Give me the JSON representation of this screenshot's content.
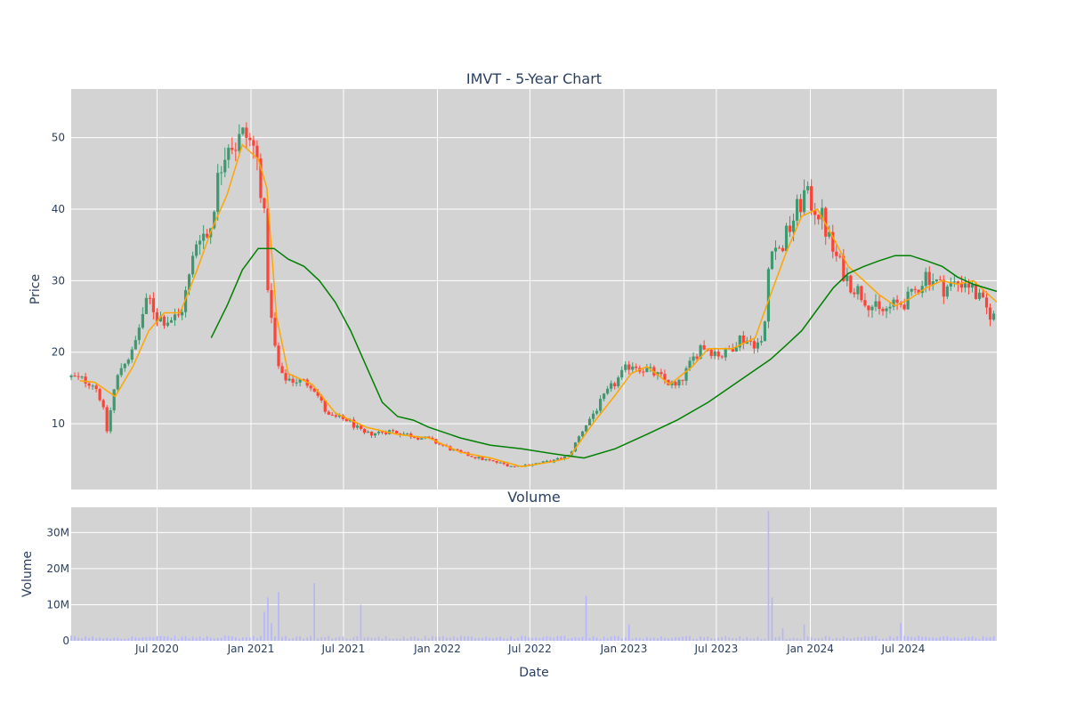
{
  "chart_data": {
    "type": "candlestick",
    "title": "IMVT - 5-Year Chart",
    "price_panel": {
      "ylabel": "Price",
      "ylim": [
        0.8,
        56.8
      ],
      "yticks": [
        10,
        20,
        30,
        40,
        50
      ],
      "grid": true
    },
    "volume_panel": {
      "title": "Volume",
      "ylabel": "Volume",
      "ylim": [
        0,
        37000000
      ],
      "yticks": [
        0,
        10000000,
        20000000,
        30000000
      ],
      "ytick_labels": [
        "0",
        "10M",
        "20M",
        "30M"
      ],
      "grid": true
    },
    "xlabel": "Date",
    "xlim": [
      "2020-01-15",
      "2024-12-31"
    ],
    "xticks": [
      "2020-07-01",
      "2021-01-01",
      "2021-07-01",
      "2022-01-01",
      "2022-07-01",
      "2023-01-01",
      "2023-07-01",
      "2024-01-01",
      "2024-07-01"
    ],
    "xtick_labels": [
      "Jul 2020",
      "Jan 2021",
      "Jul 2021",
      "Jan 2022",
      "Jul 2022",
      "Jan 2023",
      "Jul 2023",
      "Jan 2024",
      "Jul 2024"
    ],
    "colors": {
      "increasing": "#3d9970",
      "decreasing": "#ff4136",
      "ma_short": "#ffa500",
      "ma_long": "#008000",
      "volume": "#b4b4ff",
      "plot_bg": "#d3d3d3",
      "grid": "#ffffff"
    },
    "close_path": [
      [
        "2020-01-15",
        16.5
      ],
      [
        "2020-02-15",
        16.0
      ],
      [
        "2020-03-01",
        15.5
      ],
      [
        "2020-03-15",
        13.0
      ],
      [
        "2020-03-25",
        9.0
      ],
      [
        "2020-04-10",
        15.5
      ],
      [
        "2020-04-25",
        18.5
      ],
      [
        "2020-05-15",
        20.0
      ],
      [
        "2020-06-01",
        25.0
      ],
      [
        "2020-06-15",
        27.5
      ],
      [
        "2020-07-01",
        25.0
      ],
      [
        "2020-07-20",
        24.5
      ],
      [
        "2020-08-15",
        25.0
      ],
      [
        "2020-09-01",
        30.0
      ],
      [
        "2020-09-20",
        37.0
      ],
      [
        "2020-10-10",
        36.0
      ],
      [
        "2020-10-25",
        43.0
      ],
      [
        "2020-11-15",
        50.0
      ],
      [
        "2020-12-01",
        49.0
      ],
      [
        "2020-12-20",
        50.5
      ],
      [
        "2021-01-10",
        48.0
      ],
      [
        "2021-01-25",
        41.0
      ],
      [
        "2021-02-05",
        27.0
      ],
      [
        "2021-02-20",
        19.0
      ],
      [
        "2021-03-01",
        16.5
      ],
      [
        "2021-04-01",
        16.0
      ],
      [
        "2021-05-01",
        15.5
      ],
      [
        "2021-06-01",
        11.0
      ],
      [
        "2021-07-10",
        10.5
      ],
      [
        "2021-08-10",
        8.5
      ],
      [
        "2021-10-01",
        9.0
      ],
      [
        "2021-12-15",
        7.8
      ],
      [
        "2022-02-10",
        6.0
      ],
      [
        "2022-04-01",
        5.0
      ],
      [
        "2022-06-01",
        4.0
      ],
      [
        "2022-08-15",
        4.8
      ],
      [
        "2022-09-15",
        5.5
      ],
      [
        "2022-10-15",
        9.5
      ],
      [
        "2022-12-01",
        14.5
      ],
      [
        "2023-01-15",
        18.5
      ],
      [
        "2023-03-01",
        17.0
      ],
      [
        "2023-04-15",
        15.0
      ],
      [
        "2023-06-01",
        21.0
      ],
      [
        "2023-07-15",
        19.5
      ],
      [
        "2023-08-15",
        22.0
      ],
      [
        "2023-10-01",
        21.0
      ],
      [
        "2023-10-15",
        36.0
      ],
      [
        "2023-11-01",
        34.0
      ],
      [
        "2023-12-01",
        39.0
      ],
      [
        "2023-12-20",
        42.0
      ],
      [
        "2024-01-20",
        39.5
      ],
      [
        "2024-02-15",
        34.0
      ],
      [
        "2024-03-15",
        30.0
      ],
      [
        "2024-05-15",
        25.5
      ],
      [
        "2024-07-15",
        27.5
      ],
      [
        "2024-08-15",
        31.0
      ],
      [
        "2024-09-15",
        29.0
      ],
      [
        "2024-11-01",
        30.0
      ],
      [
        "2024-12-10",
        26.0
      ],
      [
        "2024-12-31",
        24.5
      ]
    ],
    "series": [
      {
        "kind": "ma_short",
        "points": [
          [
            "2020-02-01",
            16.0
          ],
          [
            "2020-03-01",
            15.8
          ],
          [
            "2020-04-10",
            13.8
          ],
          [
            "2020-05-15",
            18.0
          ],
          [
            "2020-06-15",
            23.0
          ],
          [
            "2020-07-15",
            25.5
          ],
          [
            "2020-08-15",
            25.5
          ],
          [
            "2020-09-15",
            31.0
          ],
          [
            "2020-10-15",
            37.0
          ],
          [
            "2020-11-15",
            42.0
          ],
          [
            "2020-12-15",
            49.0
          ],
          [
            "2021-01-15",
            47.0
          ],
          [
            "2021-02-01",
            43.0
          ],
          [
            "2021-02-20",
            25.0
          ],
          [
            "2021-03-15",
            17.0
          ],
          [
            "2021-05-01",
            15.5
          ],
          [
            "2021-06-15",
            11.5
          ],
          [
            "2021-08-15",
            9.5
          ],
          [
            "2021-10-15",
            8.5
          ],
          [
            "2021-12-15",
            8.0
          ],
          [
            "2022-02-15",
            6.0
          ],
          [
            "2022-04-15",
            5.2
          ],
          [
            "2022-06-15",
            4.0
          ],
          [
            "2022-08-15",
            4.7
          ],
          [
            "2022-09-15",
            5.2
          ],
          [
            "2022-11-01",
            10.0
          ],
          [
            "2022-12-15",
            14.0
          ],
          [
            "2023-01-15",
            17.0
          ],
          [
            "2023-02-15",
            18.0
          ],
          [
            "2023-04-01",
            15.5
          ],
          [
            "2023-05-15",
            18.0
          ],
          [
            "2023-06-15",
            20.5
          ],
          [
            "2023-08-01",
            20.5
          ],
          [
            "2023-09-15",
            22.0
          ],
          [
            "2023-10-15",
            28.0
          ],
          [
            "2023-11-15",
            34.0
          ],
          [
            "2023-12-15",
            39.0
          ],
          [
            "2024-01-15",
            40.0
          ],
          [
            "2024-02-15",
            36.0
          ],
          [
            "2024-03-15",
            32.0
          ],
          [
            "2024-04-15",
            30.0
          ],
          [
            "2024-05-15",
            28.0
          ],
          [
            "2024-06-15",
            26.5
          ],
          [
            "2024-07-15",
            27.5
          ],
          [
            "2024-08-15",
            29.0
          ],
          [
            "2024-09-15",
            30.0
          ],
          [
            "2024-10-15",
            29.5
          ],
          [
            "2024-11-15",
            30.0
          ],
          [
            "2024-12-31",
            27.0
          ]
        ]
      },
      {
        "kind": "ma_long",
        "points": [
          [
            "2020-10-15",
            22.0
          ],
          [
            "2020-11-15",
            26.5
          ],
          [
            "2020-12-15",
            31.5
          ],
          [
            "2021-01-15",
            34.5
          ],
          [
            "2021-02-15",
            34.5
          ],
          [
            "2021-03-15",
            33.0
          ],
          [
            "2021-04-15",
            32.0
          ],
          [
            "2021-05-15",
            30.0
          ],
          [
            "2021-06-15",
            27.0
          ],
          [
            "2021-07-15",
            23.0
          ],
          [
            "2021-08-15",
            18.0
          ],
          [
            "2021-09-15",
            13.0
          ],
          [
            "2021-10-15",
            11.0
          ],
          [
            "2021-11-15",
            10.5
          ],
          [
            "2021-12-15",
            9.5
          ],
          [
            "2022-02-15",
            8.0
          ],
          [
            "2022-04-15",
            7.0
          ],
          [
            "2022-06-15",
            6.5
          ],
          [
            "2022-08-15",
            5.8
          ],
          [
            "2022-10-15",
            5.2
          ],
          [
            "2022-12-15",
            6.5
          ],
          [
            "2023-02-15",
            8.5
          ],
          [
            "2023-04-15",
            10.5
          ],
          [
            "2023-06-15",
            13.0
          ],
          [
            "2023-08-15",
            16.0
          ],
          [
            "2023-10-15",
            19.0
          ],
          [
            "2023-11-15",
            21.0
          ],
          [
            "2023-12-15",
            23.0
          ],
          [
            "2024-01-15",
            26.0
          ],
          [
            "2024-02-15",
            29.0
          ],
          [
            "2024-03-15",
            31.0
          ],
          [
            "2024-04-15",
            32.0
          ],
          [
            "2024-05-15",
            32.8
          ],
          [
            "2024-06-15",
            33.5
          ],
          [
            "2024-07-15",
            33.5
          ],
          [
            "2024-08-15",
            32.8
          ],
          [
            "2024-09-15",
            32.0
          ],
          [
            "2024-10-15",
            30.5
          ],
          [
            "2024-11-15",
            29.5
          ],
          [
            "2024-12-31",
            28.5
          ]
        ]
      }
    ],
    "volume_spikes": [
      [
        "2021-01-28",
        8000000
      ],
      [
        "2021-02-04",
        12000000
      ],
      [
        "2021-02-12",
        5000000
      ],
      [
        "2021-02-26",
        13500000
      ],
      [
        "2021-05-04",
        16000000
      ],
      [
        "2021-08-03",
        10000000
      ],
      [
        "2022-10-17",
        12500000
      ],
      [
        "2023-01-12",
        4500000
      ],
      [
        "2023-10-12",
        36000000
      ],
      [
        "2023-10-19",
        12000000
      ],
      [
        "2023-11-08",
        3500000
      ],
      [
        "2023-12-18",
        4500000
      ],
      [
        "2024-06-24",
        5000000
      ]
    ]
  }
}
